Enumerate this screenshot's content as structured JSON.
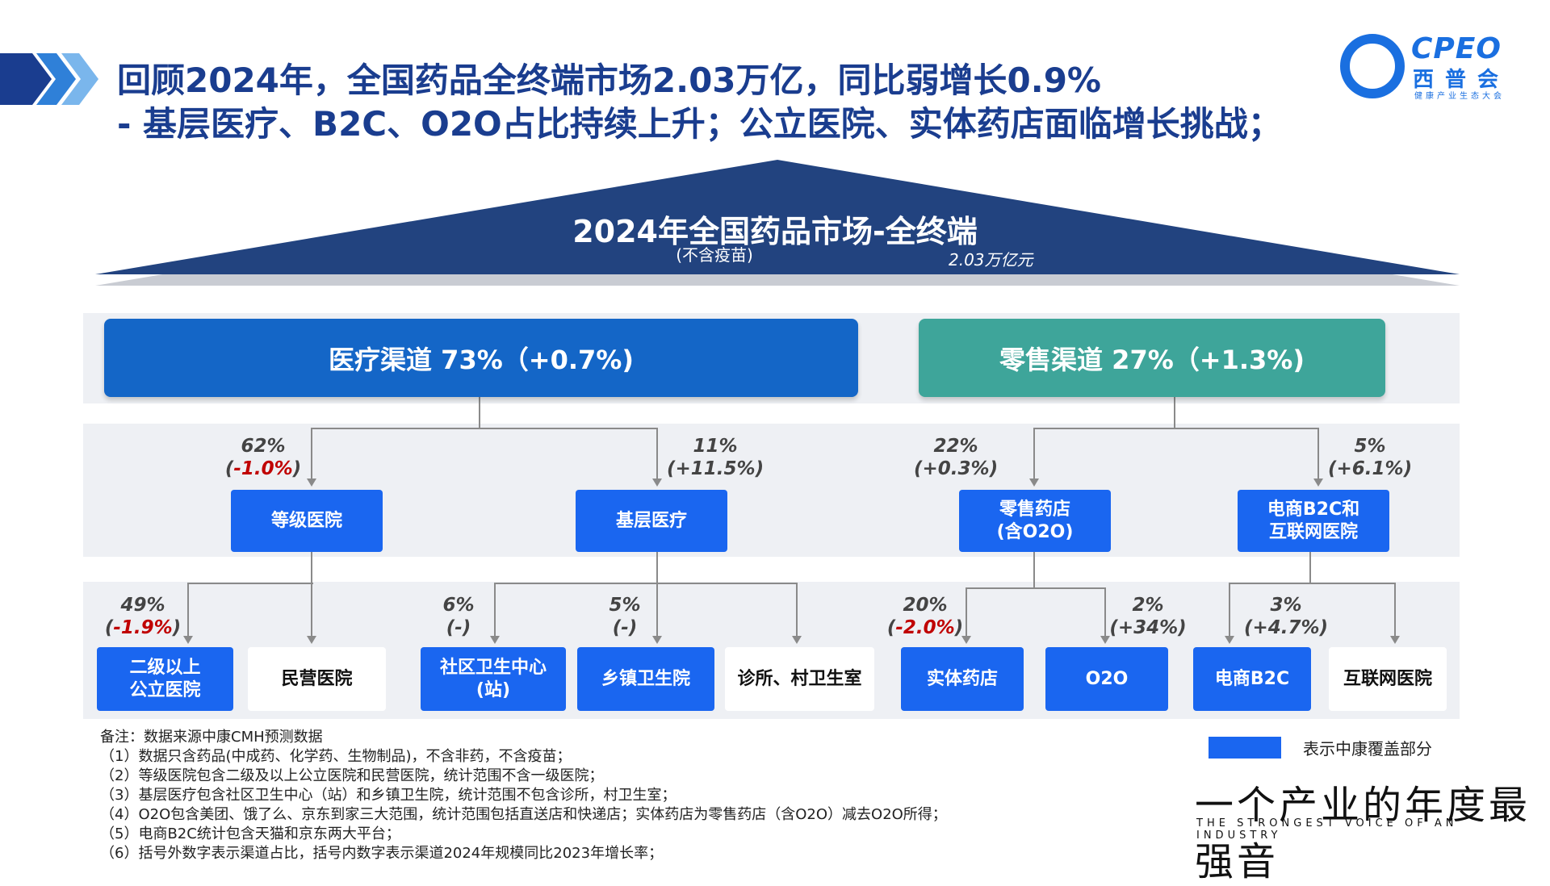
{
  "header": {
    "line1": "回顾2024年，全国药品全终端市场2.03万亿，同比弱增长0.9%",
    "line2": "-    基层医疗、B2C、O2O占比持续上升；公立医院、实体药店面临增长挑战；",
    "logo_en": "CPEO",
    "logo_cn": "西普会",
    "logo_small": "健康产业生态大会"
  },
  "pyramid": {
    "title": "2024年全国药品市场-全终端",
    "subtitle": "(不含疫苗)",
    "value": "2.03万亿元"
  },
  "channels": [
    {
      "label": "医疗渠道   73%（+0.7%)",
      "color": "#1466c7"
    },
    {
      "label": "零售渠道  27%（+1.3%)",
      "color": "#3ea59a"
    }
  ],
  "level2": [
    {
      "label": "等级医院",
      "pct": "62%",
      "chg": "-1.0%",
      "neg": true
    },
    {
      "label": "基层医疗",
      "pct": "11%",
      "chg": "+11.5%",
      "neg": false
    },
    {
      "label": "零售药店\n(含O2O)",
      "pct": "22%",
      "chg": "+0.3%",
      "neg": false
    },
    {
      "label": "电商B2C和\n互联网医院",
      "pct": "5%",
      "chg": "+6.1%",
      "neg": false
    }
  ],
  "level3": [
    {
      "label": "二级以上\n公立医院",
      "covered": true,
      "pct": "49%",
      "chg": "-1.9%",
      "neg": true
    },
    {
      "label": "民营医院",
      "covered": false
    },
    {
      "label": "社区卫生中心\n(站)",
      "covered": true,
      "pct": "6%",
      "chg": "-",
      "neg": false
    },
    {
      "label": "乡镇卫生院",
      "covered": true,
      "pct": "5%",
      "chg": "-",
      "neg": false
    },
    {
      "label": "诊所、村卫生室",
      "covered": false
    },
    {
      "label": "实体药店",
      "covered": true,
      "pct": "20%",
      "chg": "-2.0%",
      "neg": true
    },
    {
      "label": "O2O",
      "covered": true,
      "pct": "2%",
      "chg": "+34%",
      "neg": false
    },
    {
      "label": "电商B2C",
      "covered": true,
      "pct": "3%",
      "chg": "+4.7%",
      "neg": false
    },
    {
      "label": "互联网医院",
      "covered": false
    }
  ],
  "notes": [
    "备注：数据来源中康CMH预测数据",
    "（1）数据只含药品(中成药、化学药、生物制品)，不含非药，不含疫苗；",
    "（2）等级医院包含二级及以上公立医院和民营医院，统计范围不含一级医院；",
    "（3）基层医疗包含社区卫生中心（站）和乡镇卫生院，统计范围不包含诊所，村卫生室；",
    "（4）O2O包含美团、饿了么、京东到家三大范围，统计范围包括直送店和快递店；实体药店为零售药店（含O2O）减去O2O所得；",
    "（5）电商B2C统计包含天猫和京东两大平台；",
    "（6）括号外数字表示渠道占比，括号内数字表示渠道2024年规模同比2023年增长率；"
  ],
  "legend": {
    "label": "表示中康覆盖部分",
    "color": "#1a66f0"
  },
  "slogan": {
    "cn": "一个产业的年度最强音",
    "en": "THE STRONGEST VOICE OF AN INDUSTRY"
  }
}
